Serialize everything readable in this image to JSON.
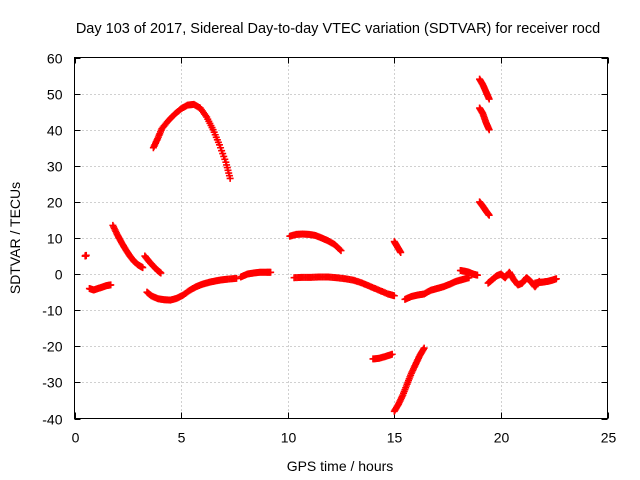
{
  "chart_data": {
    "type": "scatter",
    "title": "Day 103 of 2017, Sidereal Day-to-day VTEC variation (SDTVAR) for receiver rocd",
    "xlabel": "GPS time / hours",
    "ylabel": "SDTVAR / TECUs",
    "xlim": [
      0,
      25
    ],
    "ylim": [
      -40,
      60
    ],
    "xticks": [
      0,
      5,
      10,
      15,
      20,
      25
    ],
    "yticks": [
      -40,
      -30,
      -20,
      -10,
      0,
      10,
      20,
      30,
      40,
      50,
      60
    ],
    "grid": true,
    "legend": "none",
    "marker": "plus",
    "color": "#ff0000",
    "series": [
      {
        "values": [
          [
            0.5,
            5.0
          ],
          [
            0.55,
            5.2
          ]
        ]
      },
      {
        "values": [
          [
            0.7,
            -4.0
          ],
          [
            0.9,
            -4.4
          ],
          [
            1.1,
            -4.0
          ],
          [
            1.3,
            -3.6
          ],
          [
            1.5,
            -3.2
          ],
          [
            1.7,
            -3.0
          ]
        ]
      },
      {
        "values": [
          [
            1.8,
            13.5
          ],
          [
            2.0,
            11.0
          ],
          [
            2.2,
            8.8
          ],
          [
            2.4,
            6.8
          ],
          [
            2.6,
            5.0
          ],
          [
            2.8,
            3.5
          ],
          [
            3.0,
            2.5
          ],
          [
            3.2,
            1.8
          ]
        ]
      },
      {
        "values": [
          [
            3.3,
            5.0
          ],
          [
            3.5,
            3.5
          ],
          [
            3.7,
            2.2
          ],
          [
            3.9,
            1.0
          ],
          [
            4.05,
            0.3
          ]
        ]
      },
      {
        "values": [
          [
            3.4,
            -5.0
          ],
          [
            3.6,
            -6.0
          ],
          [
            3.9,
            -6.8
          ],
          [
            4.2,
            -7.1
          ],
          [
            4.5,
            -7.2
          ],
          [
            4.8,
            -6.7
          ],
          [
            5.1,
            -5.8
          ],
          [
            5.4,
            -4.5
          ],
          [
            5.7,
            -3.5
          ],
          [
            6.0,
            -2.8
          ],
          [
            6.3,
            -2.3
          ],
          [
            6.6,
            -1.9
          ],
          [
            6.9,
            -1.6
          ],
          [
            7.2,
            -1.4
          ],
          [
            7.6,
            -1.2
          ]
        ]
      },
      {
        "values": [
          [
            7.8,
            -0.8
          ],
          [
            8.1,
            0.0
          ],
          [
            8.4,
            0.3
          ],
          [
            8.7,
            0.5
          ],
          [
            9.0,
            0.5
          ],
          [
            9.2,
            0.5
          ]
        ]
      },
      {
        "values": [
          [
            3.7,
            35.0
          ],
          [
            3.9,
            37.5
          ],
          [
            4.1,
            40.3
          ],
          [
            4.4,
            42.5
          ],
          [
            4.7,
            44.3
          ],
          [
            5.0,
            45.8
          ],
          [
            5.3,
            46.8
          ],
          [
            5.6,
            47.0
          ],
          [
            5.9,
            46.0
          ],
          [
            6.2,
            43.5
          ],
          [
            6.5,
            40.0
          ],
          [
            6.8,
            35.8
          ],
          [
            7.1,
            31.0
          ],
          [
            7.3,
            26.5
          ]
        ]
      },
      {
        "values": [
          [
            10.1,
            10.5
          ],
          [
            10.4,
            11.0
          ],
          [
            10.7,
            11.1
          ],
          [
            11.0,
            11.0
          ],
          [
            11.3,
            10.7
          ],
          [
            11.6,
            10.0
          ],
          [
            11.9,
            9.2
          ],
          [
            12.2,
            8.2
          ],
          [
            12.5,
            6.5
          ]
        ]
      },
      {
        "values": [
          [
            10.3,
            -1.0
          ],
          [
            10.7,
            -0.9
          ],
          [
            11.1,
            -0.9
          ],
          [
            11.5,
            -0.8
          ],
          [
            11.9,
            -0.8
          ],
          [
            12.3,
            -1.0
          ],
          [
            12.7,
            -1.3
          ],
          [
            13.1,
            -1.7
          ],
          [
            13.5,
            -2.5
          ],
          [
            13.9,
            -3.5
          ],
          [
            14.3,
            -4.5
          ],
          [
            14.7,
            -5.5
          ],
          [
            15.0,
            -6.0
          ]
        ]
      },
      {
        "values": [
          [
            14.0,
            -23.5
          ],
          [
            14.3,
            -23.3
          ],
          [
            14.6,
            -22.8
          ],
          [
            14.9,
            -22.2
          ]
        ]
      },
      {
        "values": [
          [
            15.0,
            9.0
          ],
          [
            15.15,
            7.5
          ],
          [
            15.3,
            6.0
          ]
        ]
      },
      {
        "values": [
          [
            15.0,
            -38.0
          ],
          [
            15.2,
            -36.0
          ],
          [
            15.4,
            -33.5
          ],
          [
            15.6,
            -30.5
          ],
          [
            15.8,
            -27.5
          ],
          [
            16.0,
            -25.0
          ],
          [
            16.2,
            -22.5
          ],
          [
            16.4,
            -20.5
          ]
        ]
      },
      {
        "values": [
          [
            15.5,
            -7.0
          ],
          [
            15.8,
            -6.2
          ],
          [
            16.1,
            -5.8
          ],
          [
            16.4,
            -5.5
          ],
          [
            16.7,
            -4.5
          ],
          [
            17.0,
            -4.0
          ],
          [
            17.3,
            -3.5
          ],
          [
            17.6,
            -2.8
          ],
          [
            17.9,
            -2.0
          ],
          [
            18.2,
            -1.5
          ],
          [
            18.5,
            -1.0
          ]
        ]
      },
      {
        "values": [
          [
            18.1,
            1.0
          ],
          [
            18.3,
            0.8
          ],
          [
            18.5,
            0.5
          ],
          [
            18.7,
            0.0
          ],
          [
            18.9,
            -0.3
          ]
        ]
      },
      {
        "values": [
          [
            19.0,
            54.0
          ],
          [
            19.15,
            52.5
          ],
          [
            19.3,
            50.5
          ],
          [
            19.45,
            48.5
          ]
        ]
      },
      {
        "values": [
          [
            19.0,
            46.0
          ],
          [
            19.15,
            44.5
          ],
          [
            19.3,
            42.0
          ],
          [
            19.45,
            40.0
          ]
        ]
      },
      {
        "values": [
          [
            19.0,
            20.0
          ],
          [
            19.15,
            18.8
          ],
          [
            19.3,
            17.5
          ],
          [
            19.45,
            16.3
          ]
        ]
      },
      {
        "values": [
          [
            19.4,
            -2.5
          ],
          [
            19.6,
            -1.5
          ],
          [
            19.8,
            -0.5
          ],
          [
            20.0,
            0.0
          ],
          [
            20.2,
            -1.0
          ],
          [
            20.4,
            0.5
          ],
          [
            20.6,
            -1.5
          ],
          [
            20.8,
            -3.0
          ],
          [
            21.0,
            -2.5
          ],
          [
            21.2,
            -1.0
          ],
          [
            21.4,
            -2.0
          ],
          [
            21.6,
            -3.5
          ],
          [
            21.8,
            -2.0
          ]
        ]
      },
      {
        "values": [
          [
            21.6,
            -2.5
          ],
          [
            21.8,
            -2.3
          ],
          [
            22.0,
            -2.2
          ],
          [
            22.2,
            -2.0
          ],
          [
            22.4,
            -1.7
          ],
          [
            22.6,
            -1.3
          ]
        ]
      }
    ]
  }
}
